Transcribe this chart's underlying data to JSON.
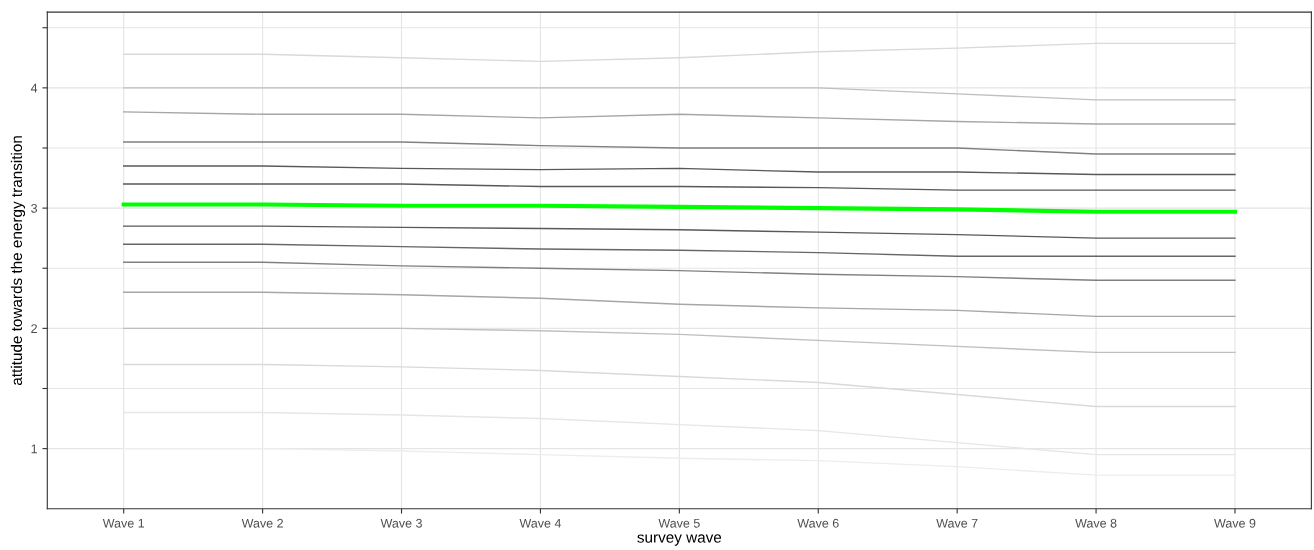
{
  "chart_data": {
    "type": "line",
    "xlabel": "survey wave",
    "ylabel": "attitude towards the energy transition",
    "categories": [
      "Wave 1",
      "Wave 2",
      "Wave 3",
      "Wave 4",
      "Wave 5",
      "Wave 6",
      "Wave 7",
      "Wave 8",
      "Wave 9"
    ],
    "series": [
      {
        "color": "#d9d9d9",
        "values": [
          4.28,
          4.28,
          4.25,
          4.22,
          4.25,
          4.3,
          4.33,
          4.37,
          4.37
        ]
      },
      {
        "color": "#bfbfbf",
        "values": [
          4.0,
          4.0,
          4.0,
          4.0,
          4.0,
          4.0,
          3.95,
          3.9,
          3.9
        ]
      },
      {
        "color": "#a6a6a6",
        "values": [
          3.8,
          3.78,
          3.78,
          3.75,
          3.78,
          3.75,
          3.72,
          3.7,
          3.7
        ]
      },
      {
        "color": "#808080",
        "values": [
          3.55,
          3.55,
          3.55,
          3.52,
          3.5,
          3.5,
          3.5,
          3.45,
          3.45
        ]
      },
      {
        "color": "#595959",
        "values": [
          3.35,
          3.35,
          3.33,
          3.32,
          3.33,
          3.3,
          3.3,
          3.28,
          3.28
        ]
      },
      {
        "color": "#595959",
        "values": [
          3.2,
          3.2,
          3.2,
          3.18,
          3.18,
          3.17,
          3.15,
          3.15,
          3.15
        ]
      },
      {
        "color": "#595959",
        "values": [
          2.85,
          2.85,
          2.84,
          2.83,
          2.82,
          2.8,
          2.78,
          2.75,
          2.75
        ]
      },
      {
        "color": "#666666",
        "values": [
          2.7,
          2.7,
          2.68,
          2.66,
          2.65,
          2.63,
          2.6,
          2.6,
          2.6
        ]
      },
      {
        "color": "#808080",
        "values": [
          2.55,
          2.55,
          2.52,
          2.5,
          2.48,
          2.45,
          2.43,
          2.4,
          2.4
        ]
      },
      {
        "color": "#a6a6a6",
        "values": [
          2.3,
          2.3,
          2.28,
          2.25,
          2.2,
          2.17,
          2.15,
          2.1,
          2.1
        ]
      },
      {
        "color": "#bfbfbf",
        "values": [
          2.0,
          2.0,
          2.0,
          1.98,
          1.95,
          1.9,
          1.85,
          1.8,
          1.8
        ]
      },
      {
        "color": "#d9d9d9",
        "values": [
          1.7,
          1.7,
          1.68,
          1.65,
          1.6,
          1.55,
          1.45,
          1.35,
          1.35
        ]
      },
      {
        "color": "#e6e6e6",
        "values": [
          1.3,
          1.3,
          1.28,
          1.25,
          1.2,
          1.15,
          1.05,
          0.95,
          0.95
        ]
      },
      {
        "color": "#ededed",
        "values": [
          1.0,
          1.0,
          0.98,
          0.95,
          0.92,
          0.9,
          0.85,
          0.78,
          0.78
        ]
      },
      {
        "color": "#00ff00",
        "values": [
          3.03,
          3.03,
          3.02,
          3.02,
          3.01,
          3.0,
          2.99,
          2.97,
          2.97
        ]
      }
    ],
    "ylim": [
      0.5,
      4.63
    ],
    "yticks": [
      1,
      {
        "value": 1.5,
        "label": null
      },
      2,
      {
        "value": 2.5,
        "label": null
      },
      3,
      {
        "value": 3.5,
        "label": null
      },
      4,
      {
        "value": 4.5,
        "label": null
      }
    ],
    "grid": true
  }
}
